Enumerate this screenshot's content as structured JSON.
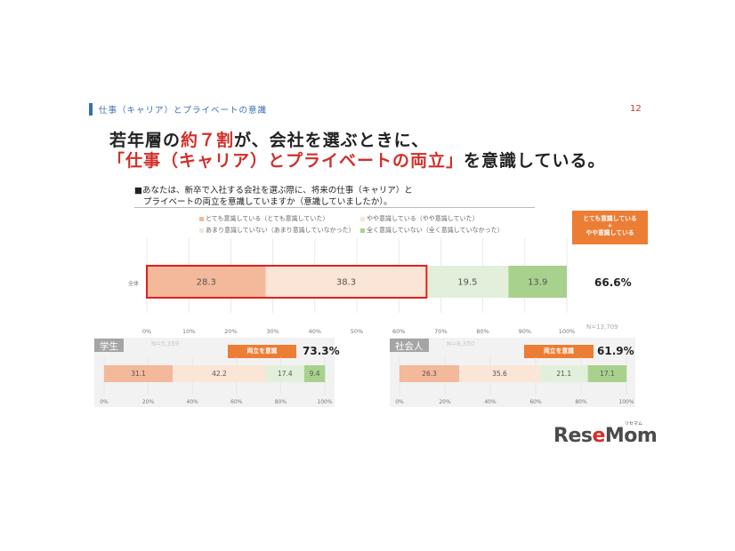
{
  "header": {
    "section_label": "仕事（キャリア）とプライベートの意識",
    "page_number": "12",
    "accent_color": "#3b6fb0"
  },
  "headline": {
    "line1_a": "若年層の",
    "line1_b": "約７割",
    "line1_c": "が、会社を選ぶときに、",
    "line2_a": "「仕事（キャリア）とプライベートの両立」",
    "line2_b": "を意識",
    "line2_c": "している。"
  },
  "question": {
    "line1": "■あなたは、新卒で入社する会社を選ぶ際に、将来の仕事（キャリア）と",
    "line2": "プライベートの両立を意識していますか（意識していましたか）。"
  },
  "legend": [
    {
      "label": "とても意識している（とても意識していた）",
      "color": "#f4b89a"
    },
    {
      "label": "やや意識している（やや意識していた）",
      "color": "#fbe5d6"
    },
    {
      "label": "あまり意識していない（あまり意識していなかった）",
      "color": "#e2efda"
    },
    {
      "label": "全く意識していない（全く意識していなかった）",
      "color": "#a9d18e"
    }
  ],
  "callout": {
    "line1": "とても意識している",
    "line2": "+",
    "line3": "やや意識している",
    "color": "#ec7d34"
  },
  "chart_data": [
    {
      "type": "bar",
      "orientation": "horizontal-stacked",
      "categories": [
        "全体"
      ],
      "series": [
        {
          "name": "とても意識している（とても意識していた）",
          "values": [
            28.3
          ]
        },
        {
          "name": "やや意識している（やや意識していた）",
          "values": [
            38.3
          ]
        },
        {
          "name": "あまり意識していない（あまり意識していなかった）",
          "values": [
            19.5
          ]
        },
        {
          "name": "全く意識していない（全く意識していなかった）",
          "values": [
            13.9
          ]
        }
      ],
      "xlim": [
        0,
        100
      ],
      "xticks": [
        "0%",
        "10%",
        "20%",
        "30%",
        "40%",
        "50%",
        "60%",
        "70%",
        "80%",
        "90%",
        "100%"
      ],
      "total_label": "66.6%",
      "n": "N=13,709"
    },
    {
      "type": "bar",
      "orientation": "horizontal-stacked",
      "title": "学生",
      "series": [
        {
          "name": "とても意識している（とても意識していた）",
          "values": [
            31.1
          ]
        },
        {
          "name": "やや意識している（やや意識していた）",
          "values": [
            42.2
          ]
        },
        {
          "name": "あまり意識していない（あまり意識していなかった）",
          "values": [
            17.4
          ]
        },
        {
          "name": "全く意識していない（全く意識していなかった）",
          "values": [
            9.4
          ]
        }
      ],
      "xlim": [
        0,
        100
      ],
      "xticks": [
        "0%",
        "20%",
        "40%",
        "60%",
        "80%",
        "100%"
      ],
      "badge": "両立を意識",
      "total_label": "73.3%",
      "n": "N=5,359"
    },
    {
      "type": "bar",
      "orientation": "horizontal-stacked",
      "title": "社会人",
      "series": [
        {
          "name": "とても意識している（とても意識していた）",
          "values": [
            26.3
          ]
        },
        {
          "name": "やや意識している（やや意識していた）",
          "values": [
            35.6
          ]
        },
        {
          "name": "あまり意識していない（あまり意識していなかった）",
          "values": [
            21.1
          ]
        },
        {
          "name": "全く意識していない（全く意識していなかった）",
          "values": [
            17.1
          ]
        }
      ],
      "xlim": [
        0,
        100
      ],
      "xticks": [
        "0%",
        "20%",
        "40%",
        "60%",
        "80%",
        "100%"
      ],
      "badge": "両立を意識",
      "total_label": "61.9%",
      "n": "N=8,350"
    }
  ],
  "logo": {
    "text_a": "Res",
    "text_accent": "e",
    "text_b": "Mom",
    "ruby": "リセマム"
  }
}
